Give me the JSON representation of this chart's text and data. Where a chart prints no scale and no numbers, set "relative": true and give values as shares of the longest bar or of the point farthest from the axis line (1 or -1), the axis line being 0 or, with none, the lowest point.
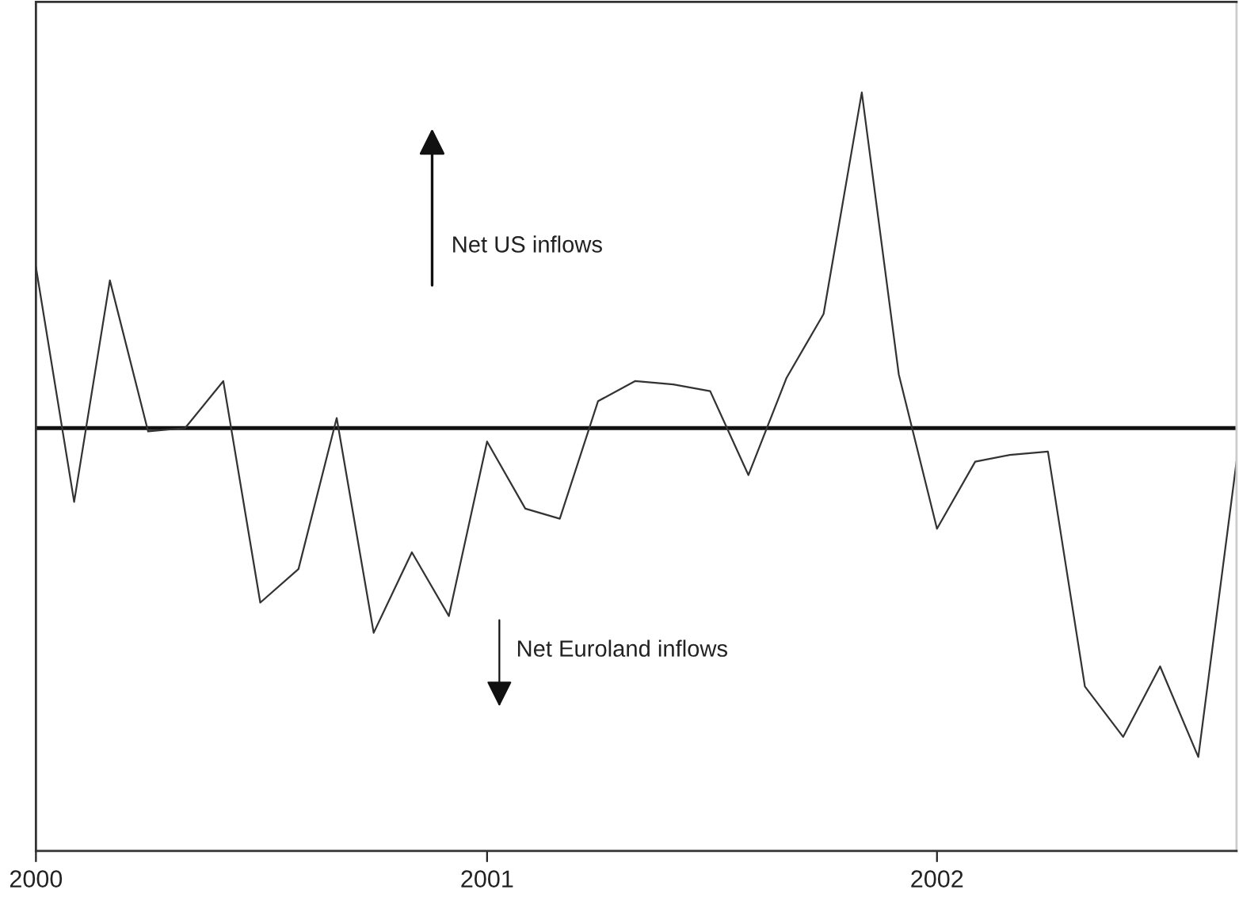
{
  "chart_data": {
    "type": "line",
    "relative": true,
    "x": [
      "2000-01",
      "2000-02",
      "2000-03",
      "2000-04",
      "2000-05",
      "2000-06",
      "2000-07",
      "2000-08",
      "2000-09",
      "2000-10",
      "2000-11",
      "2000-12",
      "2001-01",
      "2001-02",
      "2001-03",
      "2001-04",
      "2001-05",
      "2001-06",
      "2001-07",
      "2001-08",
      "2001-09",
      "2001-10",
      "2001-11",
      "2001-12",
      "2002-01",
      "2002-02",
      "2002-03",
      "2002-04",
      "2002-05",
      "2002-06",
      "2002-07",
      "2002-08",
      "2002-09"
    ],
    "series": [
      {
        "color": "#333333",
        "values": [
          0.48,
          -0.22,
          0.44,
          -0.01,
          0,
          0.14,
          -0.52,
          -0.42,
          0.03,
          -0.61,
          -0.37,
          -0.56,
          -0.04,
          -0.24,
          -0.27,
          0.08,
          0.14,
          0.13,
          0.11,
          -0.14,
          0.15,
          0.34,
          1,
          0.16,
          -0.3,
          -0.1,
          -0.08,
          -0.07,
          -0.77,
          -0.92,
          -0.71,
          -0.98,
          -0.1
        ]
      }
    ],
    "xlim": [
      "2000-01",
      "2002-09"
    ],
    "xticks": [
      {
        "value": "2000-01",
        "label": "2000"
      },
      {
        "value": "2001-01",
        "label": "2001"
      },
      {
        "value": "2002-01",
        "label": "2002"
      }
    ],
    "ref_lines": [
      {
        "axis": "y",
        "value": 0,
        "color": "#111111"
      }
    ],
    "annotations": [
      "Net US inflows",
      "Net Euroland inflows"
    ],
    "grid": false,
    "legend": false,
    "marker": "none",
    "line_style": "solid"
  }
}
